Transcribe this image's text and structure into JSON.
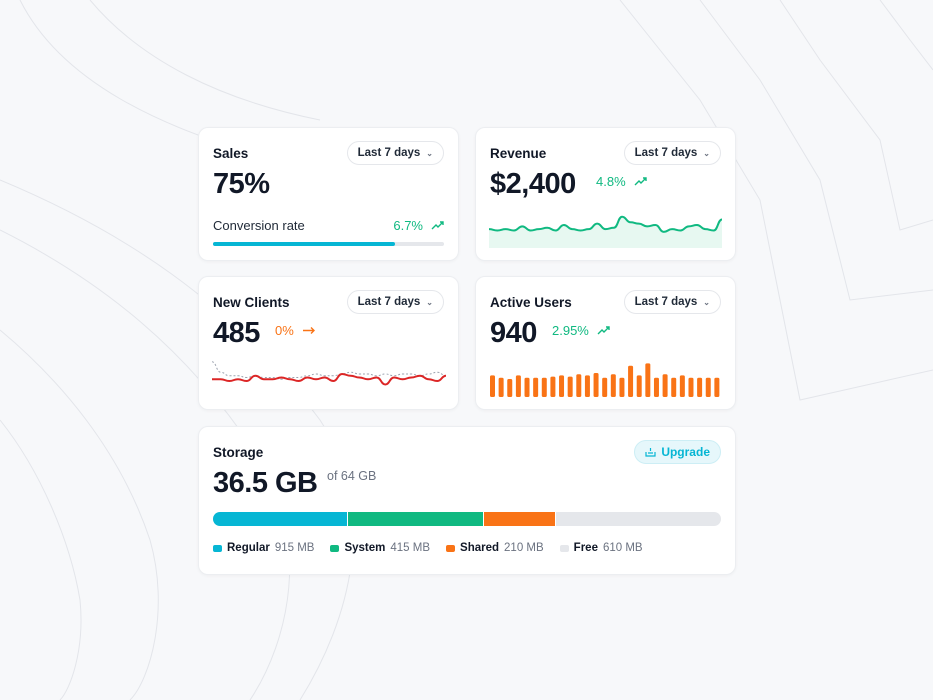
{
  "colors": {
    "blue": "#06b6d4",
    "green": "#10b981",
    "orange": "#f97316",
    "red": "#dc2626",
    "free": "#e5e7eb"
  },
  "sales": {
    "title": "Sales",
    "range": "Last 7 days",
    "value": "75%",
    "conversion_label": "Conversion rate",
    "conversion_delta": "6.7%",
    "trend_icon": "trend-up-icon",
    "progress_percent": 79
  },
  "revenue": {
    "title": "Revenue",
    "range": "Last 7 days",
    "value": "$2,400",
    "delta": "4.8%",
    "trend_icon": "trend-up-icon",
    "sparkline": [
      5,
      4,
      5,
      4,
      7,
      4,
      5,
      6,
      4,
      8,
      5,
      4,
      5,
      9,
      5,
      6,
      14,
      10,
      9,
      7,
      8,
      3,
      5,
      4,
      7,
      8,
      5,
      4,
      12
    ]
  },
  "new_clients": {
    "title": "New Clients",
    "range": "Last 7 days",
    "value": "485",
    "delta": "0%",
    "trend_icon": "arrow-right-icon",
    "current": [
      5,
      5,
      4,
      5,
      4,
      7,
      5,
      5,
      6,
      5,
      4,
      6,
      5,
      6,
      4,
      8,
      7,
      6,
      5,
      6,
      2,
      6,
      5,
      6,
      7,
      5,
      4,
      7
    ],
    "previous": [
      15,
      9,
      7,
      7,
      6,
      7,
      6,
      6,
      5,
      6,
      6,
      7,
      8,
      7,
      7,
      8,
      9,
      8,
      8,
      7,
      8,
      7,
      8,
      8,
      7,
      8,
      9,
      7
    ]
  },
  "active_users": {
    "title": "Active Users",
    "range": "Last 7 days",
    "value": "940",
    "delta": "2.95%",
    "trend_icon": "trend-up-icon",
    "bars": [
      18,
      16,
      15,
      18,
      16,
      16,
      16,
      17,
      18,
      17,
      19,
      18,
      20,
      16,
      19,
      16,
      26,
      18,
      28,
      16,
      19,
      16,
      18,
      16,
      16,
      16,
      16
    ]
  },
  "storage": {
    "title": "Storage",
    "upgrade_label": "Upgrade",
    "value": "36.5 GB",
    "total": "of 64 GB",
    "segments": [
      {
        "name": "Regular",
        "size": "915 MB",
        "share": 26.6,
        "color": "#06b6d4"
      },
      {
        "name": "System",
        "size": "415 MB",
        "share": 26.6,
        "color": "#10b981"
      },
      {
        "name": "Shared",
        "size": "210 MB",
        "share": 14.2,
        "color": "#f97316"
      },
      {
        "name": "Free",
        "size": "610 MB",
        "share": 32.6,
        "color": "#e5e7eb"
      }
    ]
  }
}
